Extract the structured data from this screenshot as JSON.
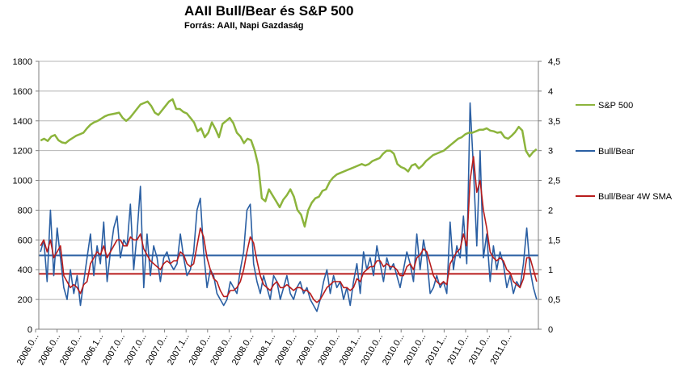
{
  "chart_data": {
    "type": "line",
    "title": "AAII Bull/Bear és S&P 500",
    "subtitle": "Forrás: AAII, Napi Gazdaság",
    "x_labels": [
      "2006.0...",
      "2006.0...",
      "2006.0...",
      "2006.1...",
      "2007.0...",
      "2007.0...",
      "2007.0...",
      "2007.1...",
      "2008.0...",
      "2008.0...",
      "2008.0...",
      "2008.1...",
      "2009.0...",
      "2009.0...",
      "2009.0...",
      "2009.1...",
      "2010.0...",
      "2010.0...",
      "2010.0...",
      "2010.1...",
      "2011.0...",
      "2011.0...",
      "2011.0..."
    ],
    "y_left": {
      "min": 0,
      "max": 1800,
      "step": 200,
      "ticks": [
        "0",
        "200",
        "400",
        "600",
        "800",
        "1000",
        "1200",
        "1400",
        "1600",
        "1800"
      ]
    },
    "y_right": {
      "min": 0,
      "max": 4.5,
      "step": 0.5,
      "ticks": [
        "0",
        "0,5",
        "1",
        "1,5",
        "2",
        "2,5",
        "3",
        "3,5",
        "4",
        "4,5"
      ]
    },
    "grid": true,
    "legend_position": "right",
    "reference_lines": [
      {
        "axis": "right",
        "value": 1.24,
        "color": "#2a5fa3"
      },
      {
        "axis": "right",
        "value": 0.93,
        "color": "#b81c1c"
      }
    ],
    "series": [
      {
        "name": "S&P 500",
        "axis": "left",
        "color": "#8cb43c",
        "values": [
          1268,
          1280,
          1265,
          1295,
          1305,
          1270,
          1255,
          1250,
          1270,
          1285,
          1300,
          1310,
          1320,
          1350,
          1375,
          1390,
          1400,
          1415,
          1430,
          1440,
          1445,
          1450,
          1455,
          1420,
          1400,
          1420,
          1450,
          1480,
          1510,
          1520,
          1530,
          1500,
          1455,
          1440,
          1470,
          1500,
          1530,
          1545,
          1480,
          1480,
          1460,
          1450,
          1420,
          1390,
          1330,
          1350,
          1290,
          1320,
          1390,
          1345,
          1290,
          1380,
          1400,
          1420,
          1385,
          1320,
          1295,
          1250,
          1280,
          1270,
          1200,
          1100,
          880,
          860,
          940,
          900,
          860,
          820,
          870,
          900,
          940,
          890,
          800,
          770,
          690,
          800,
          850,
          880,
          890,
          930,
          940,
          990,
          1020,
          1040,
          1050,
          1060,
          1070,
          1080,
          1090,
          1100,
          1110,
          1100,
          1110,
          1130,
          1140,
          1150,
          1180,
          1200,
          1200,
          1180,
          1110,
          1090,
          1080,
          1060,
          1100,
          1110,
          1080,
          1100,
          1130,
          1150,
          1170,
          1180,
          1190,
          1200,
          1220,
          1240,
          1260,
          1280,
          1290,
          1310,
          1320,
          1320,
          1330,
          1340,
          1340,
          1350,
          1335,
          1330,
          1320,
          1325,
          1290,
          1280,
          1300,
          1325,
          1360,
          1335,
          1200,
          1160,
          1190,
          1210
        ]
      },
      {
        "name": "Bull/Bear",
        "axis": "right",
        "color": "#2a5fa3",
        "values": [
          1.3,
          1.5,
          0.8,
          2.0,
          0.9,
          1.7,
          1.2,
          0.7,
          0.5,
          1.0,
          0.6,
          0.9,
          0.4,
          0.8,
          1.2,
          1.6,
          0.9,
          1.4,
          1.1,
          1.8,
          0.8,
          1.3,
          1.7,
          1.9,
          1.2,
          1.5,
          1.4,
          2.1,
          1.0,
          1.6,
          2.4,
          0.7,
          1.6,
          0.9,
          1.4,
          1.2,
          0.8,
          1.2,
          1.3,
          1.1,
          1.0,
          1.1,
          1.6,
          1.2,
          0.9,
          1.0,
          1.3,
          2.0,
          2.2,
          1.3,
          0.7,
          1.0,
          0.9,
          0.6,
          0.5,
          0.4,
          0.5,
          0.8,
          0.7,
          0.6,
          1.0,
          1.3,
          2.0,
          2.1,
          1.1,
          0.8,
          0.6,
          0.9,
          0.7,
          0.5,
          0.9,
          0.8,
          0.5,
          0.7,
          0.9,
          0.6,
          0.5,
          0.7,
          0.8,
          0.6,
          0.7,
          0.5,
          0.4,
          0.3,
          0.5,
          0.8,
          1.0,
          0.6,
          0.9,
          0.7,
          0.8,
          0.5,
          0.7,
          0.4,
          0.8,
          1.1,
          0.6,
          1.3,
          1.0,
          1.2,
          0.9,
          1.4,
          1.1,
          0.8,
          1.2,
          1.0,
          1.1,
          0.9,
          0.7,
          1.0,
          1.3,
          1.1,
          0.8,
          1.6,
          1.0,
          1.5,
          1.2,
          0.6,
          0.7,
          0.9,
          0.7,
          0.8,
          0.6,
          1.8,
          1.0,
          1.4,
          1.2,
          1.9,
          1.1,
          3.8,
          2.7,
          1.4,
          3.0,
          1.2,
          1.6,
          0.8,
          1.4,
          1.0,
          1.3,
          1.1,
          0.7,
          0.9,
          0.6,
          0.8,
          0.7,
          1.1,
          1.7,
          1.0,
          0.7,
          0.5
        ]
      },
      {
        "name": "Bull/Bear 4W SMA",
        "axis": "right",
        "color": "#b81c1c",
        "values": [
          1.4,
          1.5,
          1.3,
          1.5,
          1.2,
          1.3,
          1.4,
          0.9,
          0.8,
          0.7,
          0.75,
          0.7,
          0.6,
          0.75,
          0.8,
          1.1,
          1.2,
          1.3,
          1.25,
          1.4,
          1.2,
          1.3,
          1.4,
          1.5,
          1.5,
          1.4,
          1.4,
          1.55,
          1.5,
          1.5,
          1.6,
          1.35,
          1.25,
          1.15,
          1.1,
          1.05,
          1.0,
          1.1,
          1.15,
          1.1,
          1.15,
          1.15,
          1.3,
          1.25,
          1.1,
          1.05,
          1.1,
          1.4,
          1.7,
          1.55,
          1.2,
          1.0,
          0.85,
          0.8,
          0.65,
          0.55,
          0.55,
          0.65,
          0.65,
          0.7,
          0.8,
          1.0,
          1.3,
          1.55,
          1.45,
          1.15,
          0.9,
          0.75,
          0.7,
          0.65,
          0.75,
          0.8,
          0.7,
          0.7,
          0.75,
          0.7,
          0.65,
          0.7,
          0.7,
          0.65,
          0.65,
          0.6,
          0.5,
          0.45,
          0.5,
          0.6,
          0.7,
          0.75,
          0.8,
          0.8,
          0.8,
          0.7,
          0.7,
          0.65,
          0.7,
          0.85,
          0.8,
          0.95,
          1.0,
          1.05,
          1.05,
          1.15,
          1.15,
          1.05,
          1.1,
          1.05,
          1.05,
          1.0,
          0.9,
          0.9,
          1.05,
          1.1,
          1.0,
          1.2,
          1.25,
          1.35,
          1.3,
          1.1,
          0.9,
          0.8,
          0.75,
          0.8,
          0.75,
          1.1,
          1.2,
          1.3,
          1.35,
          1.6,
          1.4,
          2.5,
          2.9,
          2.3,
          2.5,
          2.0,
          1.7,
          1.3,
          1.2,
          1.15,
          1.2,
          1.15,
          1.0,
          0.95,
          0.8,
          0.75,
          0.7,
          0.85,
          1.2,
          1.2,
          1.0,
          0.8
        ]
      }
    ]
  }
}
